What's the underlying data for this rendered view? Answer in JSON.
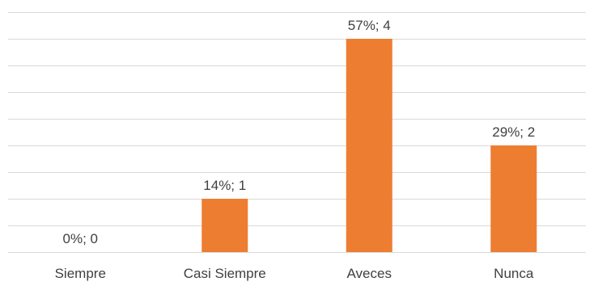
{
  "chart_data": {
    "type": "bar",
    "categories": [
      "Siempre",
      "Casi Siempre",
      "Aveces",
      "Nunca"
    ],
    "values": [
      0,
      1,
      4,
      2
    ],
    "data_labels": [
      "0%; 0",
      "14%; 1",
      "57%; 4",
      "29%; 2"
    ],
    "ylim": [
      0,
      4.5
    ],
    "grid": true,
    "bar_color": "#ed7d31",
    "grid_color": "#d9d9d9",
    "text_color": "#404040"
  }
}
